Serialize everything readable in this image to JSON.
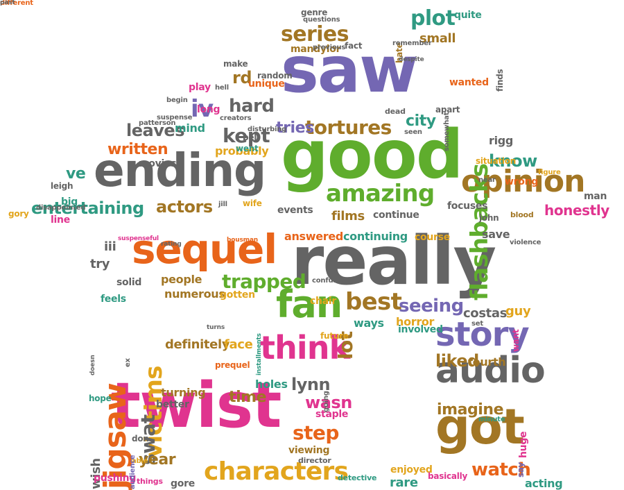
{
  "colors": {
    "purple": "#7467b3",
    "gray": "#646464",
    "green": "#5fad2d",
    "orange": "#e8641a",
    "brown": "#a27624",
    "pink": "#e0348f",
    "teal": "#2f9a82",
    "gold": "#e2a51d"
  },
  "words": [
    {
      "text": "saw",
      "color": "purple",
      "size": 92
    },
    {
      "text": "good",
      "color": "green",
      "size": 96
    },
    {
      "text": "ending",
      "color": "gray",
      "size": 66
    },
    {
      "text": "really",
      "color": "gray",
      "size": 96
    },
    {
      "text": "twist",
      "color": "pink",
      "size": 90
    },
    {
      "text": "sequel",
      "color": "orange",
      "size": 58
    },
    {
      "text": "got",
      "color": "brown",
      "size": 70
    },
    {
      "text": "audio",
      "color": "gray",
      "size": 52
    },
    {
      "text": "story",
      "color": "purple",
      "size": 48
    },
    {
      "text": "opinion",
      "color": "brown",
      "size": 44
    },
    {
      "text": "think",
      "color": "pink",
      "size": 46
    },
    {
      "text": "fan",
      "color": "green",
      "size": 54
    },
    {
      "text": "characters",
      "color": "gold",
      "size": 36
    },
    {
      "text": "jigsaw",
      "color": "orange",
      "size": 44
    },
    {
      "text": "amazing",
      "color": "green",
      "size": 34
    },
    {
      "text": "flashbacks",
      "color": "green",
      "size": 34
    },
    {
      "text": "victims",
      "color": "gold",
      "size": 34
    },
    {
      "text": "best",
      "color": "brown",
      "size": 34
    },
    {
      "text": "plot",
      "color": "teal",
      "size": 30
    },
    {
      "text": "series",
      "color": "brown",
      "size": 30
    },
    {
      "text": "tortures",
      "color": "brown",
      "size": 28
    },
    {
      "text": "kept",
      "color": "gray",
      "size": 28
    },
    {
      "text": "iv",
      "color": "purple",
      "size": 34
    },
    {
      "text": "hard",
      "color": "gray",
      "size": 26
    },
    {
      "text": "written",
      "color": "orange",
      "size": 22
    },
    {
      "text": "leaves",
      "color": "gray",
      "size": 24
    },
    {
      "text": "entertaining",
      "color": "teal",
      "size": 24
    },
    {
      "text": "actors",
      "color": "brown",
      "size": 24
    },
    {
      "text": "trapped",
      "color": "green",
      "size": 28
    },
    {
      "text": "seeing",
      "color": "purple",
      "size": 26
    },
    {
      "text": "step",
      "color": "orange",
      "size": 28
    },
    {
      "text": "watch",
      "color": "orange",
      "size": 26
    },
    {
      "text": "wasn",
      "color": "pink",
      "size": 24
    },
    {
      "text": "imagine",
      "color": "brown",
      "size": 22
    },
    {
      "text": "liked",
      "color": "brown",
      "size": 24
    },
    {
      "text": "know",
      "color": "teal",
      "size": 24
    },
    {
      "text": "city",
      "color": "teal",
      "size": 22
    },
    {
      "text": "honestly",
      "color": "pink",
      "size": 20
    },
    {
      "text": "rd",
      "color": "brown",
      "size": 24
    },
    {
      "text": "tries",
      "color": "purple",
      "size": 22
    },
    {
      "text": "swat",
      "color": "gray",
      "size": 28
    },
    {
      "text": "lynn",
      "color": "gray",
      "size": 24
    },
    {
      "text": "time",
      "color": "brown",
      "size": 22
    },
    {
      "text": "year",
      "color": "brown",
      "size": 22
    },
    {
      "text": "ve",
      "color": "teal",
      "size": 22
    },
    {
      "text": "lot",
      "color": "brown",
      "size": 28
    },
    {
      "text": "small",
      "color": "brown",
      "size": 18
    },
    {
      "text": "rigg",
      "color": "gray",
      "size": 16
    },
    {
      "text": "answered",
      "color": "orange",
      "size": 16
    },
    {
      "text": "continuing",
      "color": "teal",
      "size": 16
    },
    {
      "text": "course",
      "color": "gold",
      "size": 14
    },
    {
      "text": "save",
      "color": "gray",
      "size": 16
    },
    {
      "text": "try",
      "color": "gray",
      "size": 18
    },
    {
      "text": "iii",
      "color": "gray",
      "size": 18
    },
    {
      "text": "people",
      "color": "brown",
      "size": 16
    },
    {
      "text": "numerous",
      "color": "brown",
      "size": 16
    },
    {
      "text": "gotten",
      "color": "gold",
      "size": 14
    },
    {
      "text": "feels",
      "color": "teal",
      "size": 14
    },
    {
      "text": "solid",
      "color": "gray",
      "size": 14
    },
    {
      "text": "definitely",
      "color": "brown",
      "size": 18
    },
    {
      "text": "face",
      "color": "gold",
      "size": 18
    },
    {
      "text": "ways",
      "color": "teal",
      "size": 16
    },
    {
      "text": "horror",
      "color": "gold",
      "size": 16
    },
    {
      "text": "involved",
      "color": "teal",
      "size": 14
    },
    {
      "text": "costas",
      "color": "gray",
      "size": 18
    },
    {
      "text": "guy",
      "color": "gold",
      "size": 18
    },
    {
      "text": "chair",
      "color": "gold",
      "size": 14
    },
    {
      "text": "future",
      "color": "gold",
      "size": 12
    },
    {
      "text": "fourth",
      "color": "brown",
      "size": 16
    },
    {
      "text": "turning",
      "color": "brown",
      "size": 16
    },
    {
      "text": "better",
      "color": "gray",
      "size": 14
    },
    {
      "text": "hope",
      "color": "teal",
      "size": 12
    },
    {
      "text": "holes",
      "color": "teal",
      "size": 16
    },
    {
      "text": "staple",
      "color": "pink",
      "size": 14
    },
    {
      "text": "don",
      "color": "gray",
      "size": 12
    },
    {
      "text": "wish",
      "color": "gray",
      "size": 18
    },
    {
      "text": "huge",
      "color": "pink",
      "size": 14
    },
    {
      "text": "viewing",
      "color": "brown",
      "size": 14
    },
    {
      "text": "director",
      "color": "gray",
      "size": 11
    },
    {
      "text": "able",
      "color": "gold",
      "size": 10
    },
    {
      "text": "pushing",
      "color": "pink",
      "size": 14
    },
    {
      "text": "things",
      "color": "pink",
      "size": 11
    },
    {
      "text": "gore",
      "color": "gray",
      "size": 14
    },
    {
      "text": "detective",
      "color": "teal",
      "size": 11
    },
    {
      "text": "enjoyed",
      "color": "gold",
      "size": 14
    },
    {
      "text": "rare",
      "color": "teal",
      "size": 18
    },
    {
      "text": "basically",
      "color": "pink",
      "size": 12
    },
    {
      "text": "acting",
      "color": "teal",
      "size": 16
    },
    {
      "text": "minute",
      "color": "teal",
      "size": 10
    },
    {
      "text": "say",
      "color": "purple",
      "size": 12
    },
    {
      "text": "leigh",
      "color": "gray",
      "size": 12
    },
    {
      "text": "movies",
      "color": "gray",
      "size": 14
    },
    {
      "text": "gory",
      "color": "gold",
      "size": 12
    },
    {
      "text": "line",
      "color": "pink",
      "size": 14
    },
    {
      "text": "disappointed",
      "color": "gray",
      "size": 10
    },
    {
      "text": "jill",
      "color": "gray",
      "size": 10
    },
    {
      "text": "wife",
      "color": "gold",
      "size": 12
    },
    {
      "text": "events",
      "color": "gray",
      "size": 14
    },
    {
      "text": "films",
      "color": "brown",
      "size": 18
    },
    {
      "text": "continue",
      "color": "gray",
      "size": 14
    },
    {
      "text": "focuses",
      "color": "gray",
      "size": 14
    },
    {
      "text": "john",
      "color": "gray",
      "size": 12
    },
    {
      "text": "blood",
      "color": "brown",
      "size": 11
    },
    {
      "text": "man",
      "color": "gray",
      "size": 14
    },
    {
      "text": "figure",
      "color": "gold",
      "size": 10
    },
    {
      "text": "wrong",
      "color": "orange",
      "size": 14
    },
    {
      "text": "near",
      "color": "gray",
      "size": 10
    },
    {
      "text": "situation",
      "color": "gold",
      "size": 12
    },
    {
      "text": "apart",
      "color": "gray",
      "size": 12
    },
    {
      "text": "dead",
      "color": "gray",
      "size": 11
    },
    {
      "text": "seen",
      "color": "gray",
      "size": 10
    },
    {
      "text": "bell",
      "color": "gray",
      "size": 12
    },
    {
      "text": "disturbing",
      "color": "gray",
      "size": 10
    },
    {
      "text": "creators",
      "color": "gray",
      "size": 10
    },
    {
      "text": "probably",
      "color": "gold",
      "size": 16
    },
    {
      "text": "went",
      "color": "teal",
      "size": 12
    },
    {
      "text": "suspense",
      "color": "gray",
      "size": 10
    },
    {
      "text": "patterson",
      "color": "gray",
      "size": 10
    },
    {
      "text": "mind",
      "color": "teal",
      "size": 16
    },
    {
      "text": "begin",
      "color": "gray",
      "size": 10
    },
    {
      "text": "long",
      "color": "pink",
      "size": 14
    },
    {
      "text": "play",
      "color": "pink",
      "size": 14
    },
    {
      "text": "hell",
      "color": "gray",
      "size": 10
    },
    {
      "text": "unique",
      "color": "orange",
      "size": 14
    },
    {
      "text": "random",
      "color": "gray",
      "size": 12
    },
    {
      "text": "make",
      "color": "gray",
      "size": 12
    },
    {
      "text": "mandylor",
      "color": "brown",
      "size": 14
    },
    {
      "text": "previous",
      "color": "gray",
      "size": 10
    },
    {
      "text": "fact",
      "color": "gray",
      "size": 12
    },
    {
      "text": "genre",
      "color": "gray",
      "size": 12
    },
    {
      "text": "questions",
      "color": "gray",
      "size": 10
    },
    {
      "text": "hate",
      "color": "brown",
      "size": 12
    },
    {
      "text": "remember",
      "color": "gray",
      "size": 10
    },
    {
      "text": "despite",
      "color": "gray",
      "size": 9
    },
    {
      "text": "quite",
      "color": "teal",
      "size": 14
    },
    {
      "text": "finds",
      "color": "gray",
      "size": 12
    },
    {
      "text": "wanted",
      "color": "orange",
      "size": 14
    },
    {
      "text": "somewhat",
      "color": "gray",
      "size": 10
    },
    {
      "text": "big",
      "color": "teal",
      "size": 14
    },
    {
      "text": "suspenseful",
      "color": "pink",
      "size": 9
    },
    {
      "text": "rating",
      "color": "gray",
      "size": 9
    },
    {
      "text": "bousman",
      "color": "orange",
      "size": 9
    },
    {
      "text": "confused",
      "color": "gray",
      "size": 10
    },
    {
      "text": "installments",
      "color": "teal",
      "size": 9
    },
    {
      "text": "turns",
      "color": "gray",
      "size": 9
    },
    {
      "text": "prequel",
      "color": "orange",
      "size": 12
    },
    {
      "text": "going",
      "color": "gray",
      "size": 10
    },
    {
      "text": "set",
      "color": "gray",
      "size": 10
    },
    {
      "text": "want",
      "color": "pink",
      "size": 12
    },
    {
      "text": "fbi",
      "color": "gray",
      "size": 10
    },
    {
      "text": "violence",
      "color": "gray",
      "size": 10
    },
    {
      "text": "doesn",
      "color": "gray",
      "size": 9
    },
    {
      "text": "ex",
      "color": "gray",
      "size": 10
    },
    {
      "text": "audience",
      "color": "purple",
      "size": 10
    },
    {
      "text": "different",
      "color": "orange",
      "size": 10
    },
    {
      "text": "past",
      "color": "gray",
      "size": 9
    }
  ]
}
